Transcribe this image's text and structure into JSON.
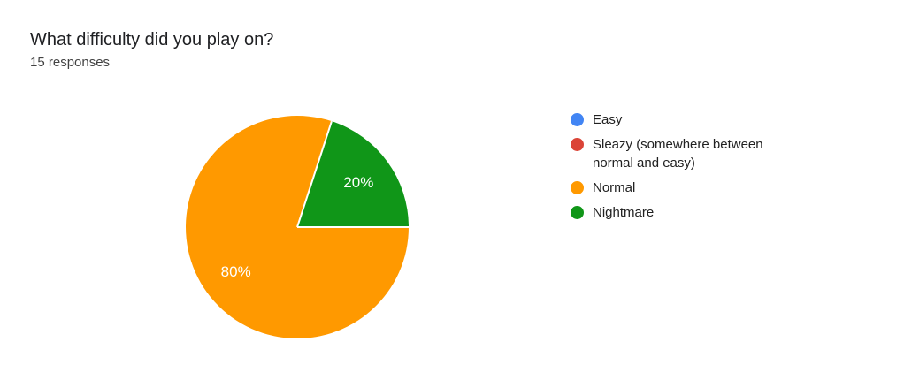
{
  "header": {
    "title": "What difficulty did you play on?",
    "responses": "15 responses"
  },
  "chart_data": {
    "type": "pie",
    "title": "What difficulty did you play on?",
    "subtitle": "15 responses",
    "categories": [
      "Easy",
      "Sleazy (somewhere between normal and easy)",
      "Normal",
      "Nightmare"
    ],
    "percentages": [
      0,
      0,
      80,
      20
    ],
    "slice_labels": [
      "",
      "",
      "80%",
      "20%"
    ],
    "colors": [
      "#4285F4",
      "#DB4437",
      "#FF9900",
      "#109618"
    ],
    "legend_position": "right",
    "pie_start_angle_deg": 90,
    "background": "#FFFFFF",
    "slice_label_color": "#FFFFFF",
    "separator_color": "#FFFFFF"
  }
}
